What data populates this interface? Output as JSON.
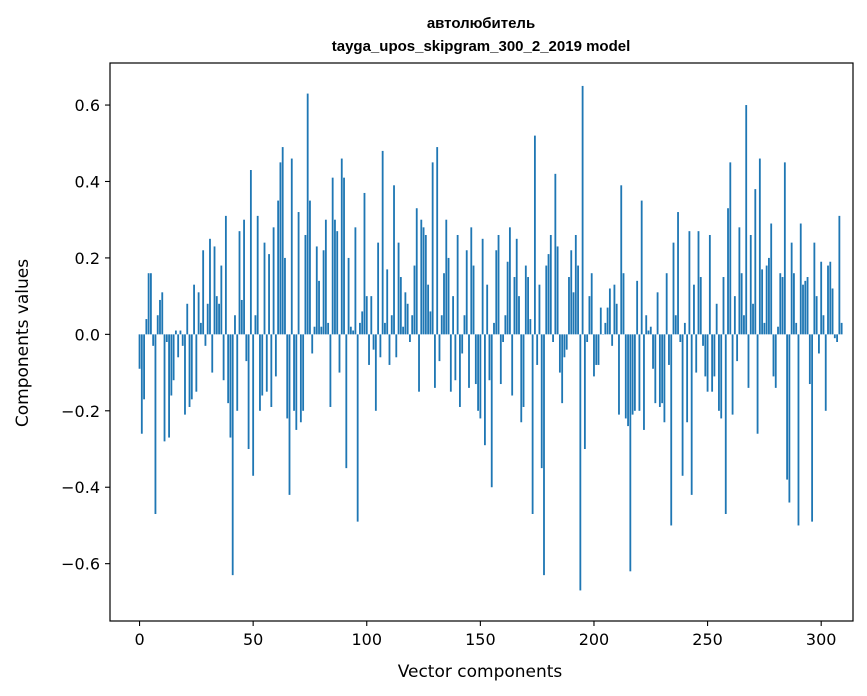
{
  "chart_data": {
    "type": "bar",
    "title": "автолюбитель",
    "subtitle": "tayga_upos_skipgram_300_2_2019 model",
    "xlabel": "Vector components",
    "ylabel": "Components values",
    "xlim": [
      -13,
      314
    ],
    "ylim": [
      -0.75,
      0.71
    ],
    "xticks": [
      0,
      50,
      100,
      150,
      200,
      250,
      300
    ],
    "yticks": [
      -0.6,
      -0.4,
      -0.2,
      0.0,
      0.2,
      0.4,
      0.6
    ],
    "ytick_labels": [
      "−0.6",
      "−0.4",
      "−0.2",
      "0.0",
      "0.2",
      "0.4",
      "0.6"
    ],
    "xtick_labels": [
      "0",
      "50",
      "100",
      "150",
      "200",
      "250",
      "300"
    ],
    "bar_color": "#1f77b4",
    "grid": false,
    "values": [
      -0.09,
      -0.26,
      -0.17,
      0.04,
      0.16,
      0.16,
      -0.03,
      -0.47,
      0.05,
      0.09,
      0.11,
      -0.28,
      -0.02,
      -0.27,
      -0.16,
      -0.12,
      0.01,
      -0.06,
      0.01,
      -0.03,
      -0.21,
      0.08,
      -0.19,
      -0.17,
      0.13,
      -0.15,
      0.11,
      0.03,
      0.22,
      -0.03,
      0.08,
      0.25,
      -0.1,
      0.23,
      0.1,
      0.08,
      0.18,
      -0.12,
      0.31,
      -0.18,
      -0.27,
      -0.63,
      0.05,
      -0.2,
      0.27,
      0.09,
      0.3,
      -0.07,
      -0.3,
      0.43,
      -0.37,
      0.05,
      0.31,
      -0.2,
      -0.16,
      0.24,
      -0.15,
      0.21,
      -0.19,
      0.28,
      -0.11,
      0.35,
      0.45,
      0.49,
      0.2,
      -0.22,
      -0.42,
      0.46,
      -0.2,
      -0.25,
      0.32,
      -0.23,
      -0.2,
      0.26,
      0.63,
      0.35,
      -0.05,
      0.02,
      0.23,
      0.14,
      0.02,
      0.22,
      0.3,
      0.03,
      -0.19,
      0.41,
      0.3,
      0.27,
      -0.1,
      0.46,
      0.41,
      -0.35,
      0.2,
      0.02,
      0.01,
      0.28,
      -0.49,
      0.03,
      0.06,
      0.37,
      0.1,
      -0.08,
      0.1,
      -0.04,
      -0.2,
      0.24,
      -0.06,
      0.48,
      0.03,
      0.17,
      -0.08,
      0.05,
      0.39,
      -0.06,
      0.24,
      0.15,
      0.02,
      0.11,
      0.08,
      -0.02,
      0.05,
      0.18,
      0.33,
      -0.15,
      0.3,
      0.28,
      0.26,
      0.13,
      0.06,
      0.45,
      -0.14,
      0.49,
      -0.07,
      0.05,
      0.16,
      0.3,
      0.2,
      -0.15,
      0.1,
      -0.12,
      0.26,
      -0.19,
      -0.05,
      0.05,
      0.22,
      -0.14,
      0.28,
      0.18,
      -0.13,
      -0.2,
      -0.22,
      0.25,
      -0.29,
      0.13,
      -0.12,
      -0.4,
      0.03,
      0.22,
      0.26,
      -0.13,
      -0.02,
      0.05,
      0.19,
      0.28,
      -0.16,
      0.15,
      0.25,
      0.1,
      -0.23,
      -0.19,
      0.18,
      0.15,
      0.04,
      -0.47,
      0.52,
      -0.08,
      0.13,
      -0.35,
      -0.63,
      0.18,
      0.21,
      0.26,
      -0.02,
      0.42,
      0.23,
      -0.1,
      -0.18,
      -0.06,
      -0.04,
      0.15,
      0.22,
      0.11,
      0.26,
      0.18,
      -0.67,
      0.65,
      -0.3,
      -0.02,
      0.1,
      0.16,
      -0.11,
      -0.08,
      -0.08,
      0.07,
      0.0,
      0.03,
      0.07,
      0.12,
      -0.03,
      0.13,
      0.08,
      -0.21,
      0.39,
      0.16,
      -0.22,
      -0.24,
      -0.62,
      -0.21,
      -0.2,
      0.14,
      -0.2,
      0.35,
      -0.25,
      0.05,
      0.01,
      0.02,
      -0.09,
      -0.18,
      0.11,
      -0.19,
      -0.18,
      -0.23,
      0.16,
      -0.08,
      -0.5,
      0.24,
      0.05,
      0.32,
      -0.02,
      -0.37,
      0.03,
      -0.23,
      0.27,
      -0.42,
      0.13,
      -0.1,
      0.27,
      0.15,
      -0.03,
      -0.11,
      -0.15,
      0.26,
      -0.15,
      -0.11,
      0.08,
      -0.2,
      -0.22,
      0.15,
      -0.47,
      0.33,
      0.45,
      -0.21,
      0.1,
      -0.07,
      0.28,
      0.16,
      0.05,
      0.6,
      -0.14,
      0.26,
      0.08,
      0.38,
      -0.26,
      0.46,
      0.17,
      0.03,
      0.18,
      0.2,
      0.29,
      -0.11,
      -0.14,
      0.02,
      0.16,
      0.15,
      0.45,
      -0.38,
      -0.44,
      0.24,
      0.16,
      0.03,
      -0.5,
      0.29,
      0.13,
      0.14,
      0.15,
      -0.13,
      -0.49,
      0.24,
      0.1,
      -0.05,
      0.19,
      0.05,
      -0.2,
      0.18,
      0.19,
      0.12,
      -0.01,
      -0.02,
      0.31,
      0.03
    ]
  }
}
